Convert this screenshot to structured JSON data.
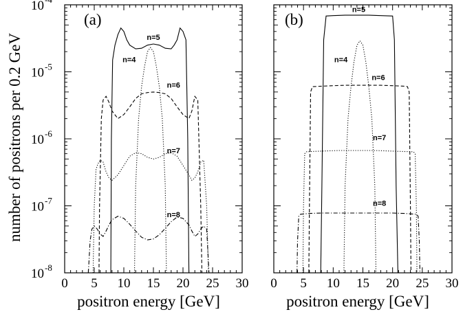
{
  "chart_data": [
    {
      "type": "line",
      "panel_label": "(a)",
      "xlabel": "positron energy [GeV]",
      "ylabel": "number of positrons per 0.2 GeV",
      "xlim": [
        0,
        30
      ],
      "ylim": [
        1e-08,
        0.0001
      ],
      "yscale": "log",
      "x_ticks": [
        "0",
        "5",
        "10",
        "15",
        "20",
        "25",
        "30"
      ],
      "y_ticks": [
        {
          "base": "10",
          "exp": "-8"
        },
        {
          "base": "10",
          "exp": "-7"
        },
        {
          "base": "10",
          "exp": "-6"
        },
        {
          "base": "10",
          "exp": "-5"
        },
        {
          "base": "10",
          "exp": "-4"
        }
      ],
      "series": [
        {
          "name": "n=5",
          "style": "solid",
          "label_at": [
            15,
            3e-05
          ],
          "x": [
            7.8,
            7.9,
            8.1,
            8.5,
            9.0,
            9.5,
            10.0,
            10.5,
            11.0,
            12.0,
            13.0,
            14.0,
            15.0,
            16.0,
            17.0,
            18.0,
            18.5,
            19.0,
            19.5,
            20.0,
            20.5,
            20.8,
            21.0
          ],
          "y": [
            1e-08,
            1e-06,
            1.5e-05,
            2.5e-05,
            3.6e-05,
            4.5e-05,
            4e-05,
            3e-05,
            2.5e-05,
            2.2e-05,
            2.25e-05,
            2.5e-05,
            2.6e-05,
            2.5e-05,
            2.25e-05,
            2.2e-05,
            2.5e-05,
            3e-05,
            4.5e-05,
            4e-05,
            3e-05,
            1e-06,
            1e-08
          ]
        },
        {
          "name": "n=4",
          "style": "dotted",
          "label_at": [
            10.9,
            1.4e-05
          ],
          "x": [
            11.8,
            12.0,
            12.5,
            13.0,
            13.5,
            14.0,
            14.5,
            15.0,
            15.5,
            16.0,
            16.5,
            17.0,
            17.2
          ],
          "y": [
            1e-08,
            2e-07,
            2e-06,
            6e-06,
            1.2e-05,
            2e-05,
            2.3e-05,
            2e-05,
            1.2e-05,
            6e-06,
            2e-06,
            2e-07,
            1e-08
          ]
        },
        {
          "name": "n=6",
          "style": "dashed",
          "label_at": [
            18.4,
            5.8e-06
          ],
          "x": [
            5.8,
            5.9,
            6.2,
            6.5,
            7.0,
            7.5,
            8.0,
            9.0,
            10.0,
            11.0,
            12.0,
            13.0,
            14.0,
            15.0,
            16.0,
            17.0,
            18.0,
            19.0,
            20.0,
            21.0,
            21.5,
            22.0,
            22.5,
            23.0,
            23.2
          ],
          "y": [
            1e-08,
            1e-07,
            2e-06,
            3.8e-06,
            4.3e-06,
            3.5e-06,
            2.6e-06,
            2e-06,
            2.3e-06,
            3e-06,
            4e-06,
            4.7e-06,
            4.9e-06,
            5e-06,
            4.9e-06,
            4.7e-06,
            4e-06,
            3e-06,
            2.3e-06,
            2e-06,
            2.6e-06,
            4.3e-06,
            3.8e-06,
            1e-07,
            1e-08
          ]
        },
        {
          "name": "n=7",
          "style": "dotted",
          "label_at": [
            18.4,
            6.1e-07
          ],
          "x": [
            4.8,
            5.0,
            5.3,
            5.6,
            6.0,
            6.5,
            7.0,
            7.5,
            8.0,
            9.0,
            10.0,
            11.0,
            12.0,
            13.0,
            14.0,
            15.0,
            16.0,
            17.0,
            18.0,
            19.0,
            20.0,
            21.0,
            21.5,
            22.0,
            22.5,
            23.0,
            23.5,
            24.0,
            24.3
          ],
          "y": [
            1e-08,
            1e-07,
            3.5e-07,
            4.2e-07,
            4.8e-07,
            4.5e-07,
            3.2e-07,
            2.6e-07,
            2.4e-07,
            2.9e-07,
            4e-07,
            5.5e-07,
            6.2e-07,
            6e-07,
            5.3e-07,
            5e-07,
            5.3e-07,
            6e-07,
            6.2e-07,
            5.5e-07,
            4e-07,
            2.9e-07,
            2.4e-07,
            2.6e-07,
            3.2e-07,
            4.5e-07,
            4.8e-07,
            1e-07,
            1e-08
          ]
        },
        {
          "name": "n=8",
          "style": "dashdot",
          "label_at": [
            18.4,
            6.8e-08
          ],
          "x": [
            4.0,
            4.3,
            4.6,
            5.0,
            5.5,
            6.0,
            6.5,
            7.0,
            7.5,
            8.0,
            9.0,
            10.0,
            11.0,
            12.0,
            13.0,
            14.0,
            15.0,
            16.0,
            17.0,
            18.0,
            19.0,
            20.0,
            21.0,
            21.5,
            22.0,
            22.5,
            23.0,
            23.5,
            24.0,
            24.4
          ],
          "y": [
            1e-08,
            3e-08,
            4.5e-08,
            5e-08,
            4.5e-08,
            3.8e-08,
            3.5e-08,
            4.2e-08,
            5.2e-08,
            6.2e-08,
            7e-08,
            6.5e-08,
            5.3e-08,
            4.2e-08,
            3.4e-08,
            3.1e-08,
            3.2e-08,
            3.7e-08,
            4.6e-08,
            5.8e-08,
            6.8e-08,
            6.5e-08,
            5.2e-08,
            4.2e-08,
            3.5e-08,
            3.8e-08,
            4.5e-08,
            5e-08,
            4.5e-08,
            1e-08
          ]
        }
      ]
    },
    {
      "type": "line",
      "panel_label": "(b)",
      "xlabel": "positron energy [GeV]",
      "ylabel": "",
      "xlim": [
        0,
        30
      ],
      "ylim": [
        1e-08,
        0.0001
      ],
      "yscale": "log",
      "x_ticks": [
        "0",
        "5",
        "10",
        "15",
        "20",
        "25",
        "30"
      ],
      "series": [
        {
          "name": "n=5",
          "style": "solid",
          "label_at": [
            14.3,
            7.8e-05
          ],
          "x": [
            7.9,
            8.1,
            8.4,
            8.8,
            10.0,
            12.0,
            14.0,
            16.0,
            18.0,
            20.0,
            20.3,
            20.6,
            20.9
          ],
          "y": [
            1e-08,
            2e-07,
            3e-05,
            6.8e-05,
            6.9e-05,
            7e-05,
            7e-05,
            7e-05,
            6.9e-05,
            6.8e-05,
            3e-05,
            2e-07,
            1e-08
          ]
        },
        {
          "name": "n=4",
          "style": "dotted",
          "label_at": [
            11.3,
            1.4e-05
          ],
          "x": [
            11.8,
            12.0,
            12.5,
            13.0,
            13.5,
            14.0,
            14.5,
            15.0,
            15.5,
            16.0,
            16.5,
            17.0,
            17.2
          ],
          "y": [
            1e-08,
            2e-07,
            2e-06,
            6e-06,
            1.4e-05,
            2.5e-05,
            2.9e-05,
            2.5e-05,
            1.4e-05,
            6e-06,
            2e-06,
            2e-07,
            1e-08
          ]
        },
        {
          "name": "n=6",
          "style": "dashed",
          "label_at": [
            17.6,
            7.5e-06
          ],
          "x": [
            5.9,
            6.0,
            6.2,
            6.5,
            8.0,
            10.0,
            12.0,
            14.0,
            16.0,
            18.0,
            20.0,
            22.0,
            22.5,
            22.8,
            23.0,
            23.1
          ],
          "y": [
            1e-08,
            1e-07,
            5e-06,
            6e-06,
            6.1e-06,
            6.2e-06,
            6.3e-06,
            6.3e-06,
            6.3e-06,
            6.3e-06,
            6.2e-06,
            6.1e-06,
            6e-06,
            5e-06,
            1e-07,
            1e-08
          ]
        },
        {
          "name": "n=7",
          "style": "dotted",
          "label_at": [
            17.8,
            9.5e-07
          ],
          "x": [
            4.9,
            5.0,
            5.2,
            5.5,
            7.0,
            9.0,
            11.0,
            13.0,
            15.0,
            17.0,
            19.0,
            21.0,
            23.5,
            23.8,
            24.0,
            24.1
          ],
          "y": [
            1e-08,
            1e-07,
            6e-07,
            6.4e-07,
            6.5e-07,
            6.6e-07,
            6.7e-07,
            6.7e-07,
            6.7e-07,
            6.7e-07,
            6.6e-07,
            6.5e-07,
            6.4e-07,
            6e-07,
            1e-07,
            1e-08
          ]
        },
        {
          "name": "n=8",
          "style": "dashdot",
          "label_at": [
            17.8,
            1e-07
          ],
          "x": [
            3.9,
            4.0,
            4.2,
            4.5,
            6.0,
            8.0,
            10.0,
            12.0,
            14.0,
            16.0,
            18.0,
            20.0,
            22.0,
            24.0,
            24.3,
            24.5,
            24.6
          ],
          "y": [
            1e-08,
            3e-08,
            7e-08,
            7.5e-08,
            7.7e-08,
            7.8e-08,
            7.8e-08,
            7.8e-08,
            7.8e-08,
            7.8e-08,
            7.8e-08,
            7.8e-08,
            7.7e-08,
            7.5e-08,
            7e-08,
            3e-08,
            1e-08
          ]
        }
      ]
    }
  ]
}
